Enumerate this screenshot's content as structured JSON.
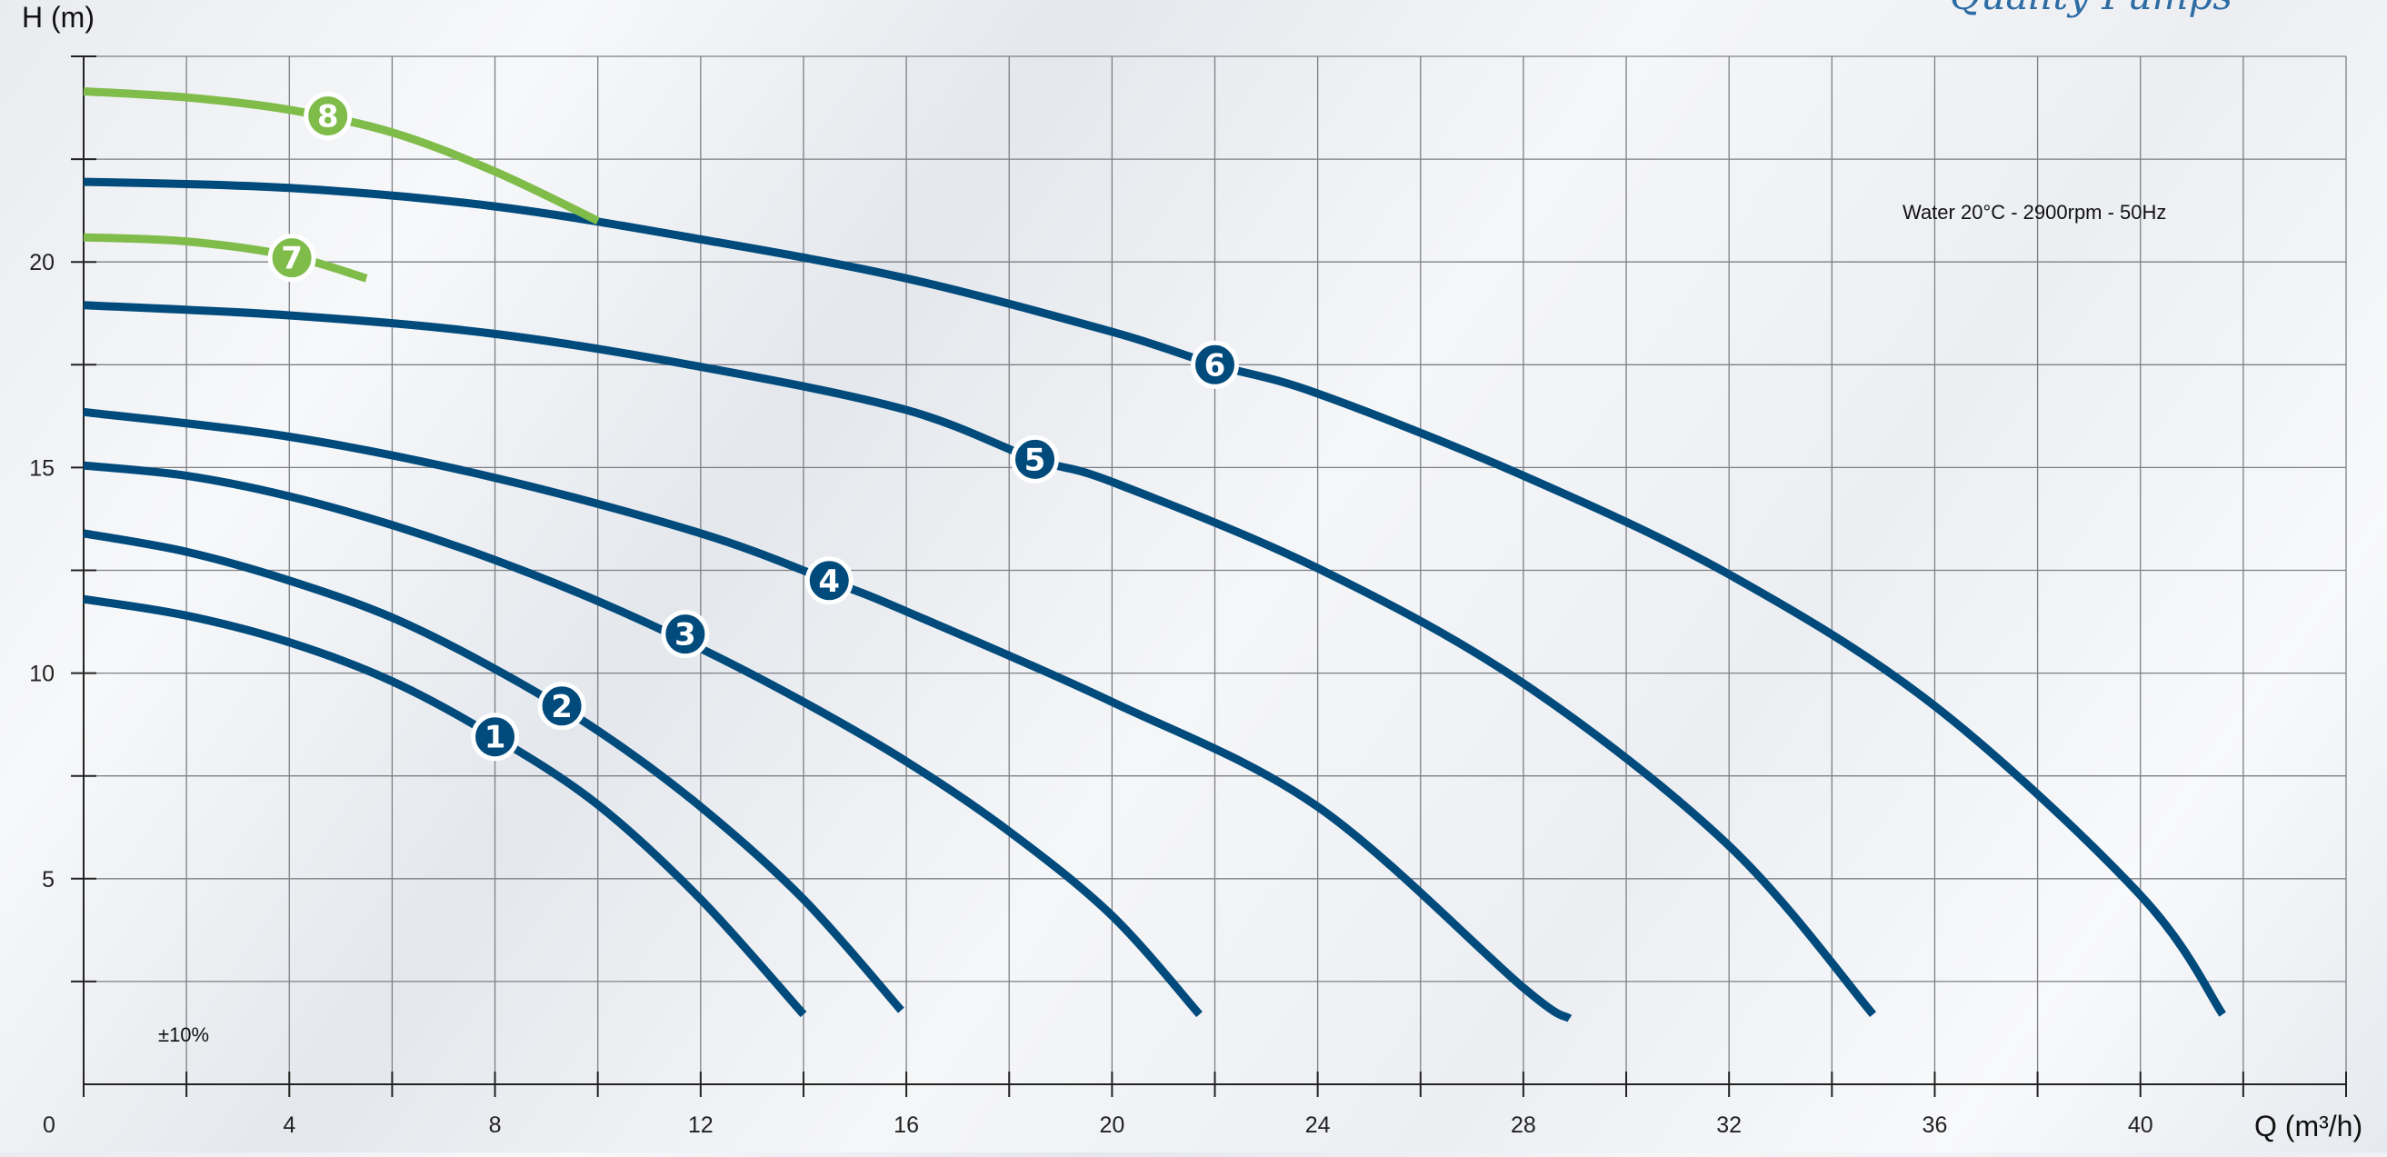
{
  "brand": {
    "logo_text": "Quality Pumps"
  },
  "chart_data": {
    "type": "line",
    "title": "",
    "xlabel": "Q (m³/h)",
    "ylabel": "H (m)",
    "xlim": [
      0,
      44
    ],
    "ylim": [
      0,
      25
    ],
    "x_ticks": [
      0,
      4,
      8,
      12,
      16,
      20,
      24,
      28,
      32,
      36,
      40
    ],
    "y_ticks": [
      5,
      10,
      15,
      20
    ],
    "x_grid_step": 2,
    "y_grid_step": 2.5,
    "grid": true,
    "annotations": {
      "conditions": "Water 20°C - 2900rpm - 50Hz",
      "tolerance": "±10%"
    },
    "colors": {
      "blue": "#004a7c",
      "green": "#80bc4a"
    },
    "series": [
      {
        "label": "1",
        "color": "#004a7c",
        "label_at": [
          8,
          8.45
        ],
        "points": [
          [
            0,
            11.8
          ],
          [
            2,
            11.4
          ],
          [
            4,
            10.75
          ],
          [
            6,
            9.8
          ],
          [
            8,
            8.45
          ],
          [
            10,
            6.8
          ],
          [
            12,
            4.5
          ],
          [
            14,
            1.7
          ]
        ]
      },
      {
        "label": "2",
        "color": "#004a7c",
        "label_at": [
          9.3,
          9.2
        ],
        "points": [
          [
            0,
            13.4
          ],
          [
            2,
            12.95
          ],
          [
            4,
            12.25
          ],
          [
            6,
            11.35
          ],
          [
            8,
            10.1
          ],
          [
            10,
            8.6
          ],
          [
            12,
            6.75
          ],
          [
            14,
            4.5
          ],
          [
            15.9,
            1.8
          ]
        ]
      },
      {
        "label": "3",
        "color": "#004a7c",
        "label_at": [
          11.7,
          10.95
        ],
        "points": [
          [
            0,
            15.05
          ],
          [
            2,
            14.8
          ],
          [
            4,
            14.3
          ],
          [
            6,
            13.6
          ],
          [
            8,
            12.75
          ],
          [
            10,
            11.75
          ],
          [
            12,
            10.6
          ],
          [
            14,
            9.3
          ],
          [
            16,
            7.85
          ],
          [
            18,
            6.15
          ],
          [
            20,
            4.1
          ],
          [
            21.7,
            1.7
          ]
        ]
      },
      {
        "label": "4",
        "color": "#004a7c",
        "label_at": [
          14.5,
          12.25
        ],
        "points": [
          [
            0,
            16.35
          ],
          [
            4,
            15.75
          ],
          [
            8,
            14.75
          ],
          [
            12,
            13.4
          ],
          [
            14.5,
            12.25
          ],
          [
            16,
            11.5
          ],
          [
            20,
            9.3
          ],
          [
            24,
            6.75
          ],
          [
            28,
            2.35
          ],
          [
            28.9,
            1.6
          ]
        ]
      },
      {
        "label": "5",
        "color": "#004a7c",
        "label_at": [
          18.5,
          15.2
        ],
        "points": [
          [
            0,
            18.95
          ],
          [
            4,
            18.7
          ],
          [
            8,
            18.25
          ],
          [
            12,
            17.45
          ],
          [
            16,
            16.4
          ],
          [
            18.5,
            15.2
          ],
          [
            20,
            14.65
          ],
          [
            24,
            12.55
          ],
          [
            28,
            9.75
          ],
          [
            32,
            5.8
          ],
          [
            34.8,
            1.7
          ]
        ]
      },
      {
        "label": "6",
        "color": "#004a7c",
        "label_at": [
          22,
          17.5
        ],
        "points": [
          [
            0,
            21.95
          ],
          [
            4,
            21.8
          ],
          [
            8,
            21.35
          ],
          [
            12,
            20.55
          ],
          [
            16,
            19.6
          ],
          [
            20,
            18.3
          ],
          [
            22,
            17.5
          ],
          [
            24,
            16.8
          ],
          [
            28,
            14.8
          ],
          [
            32,
            12.4
          ],
          [
            36,
            9.2
          ],
          [
            40,
            4.6
          ],
          [
            41.6,
            1.7
          ]
        ]
      },
      {
        "label": "7",
        "color": "#80bc4a",
        "label_at": [
          4.05,
          20.1
        ],
        "points": [
          [
            0,
            20.6
          ],
          [
            2,
            20.5
          ],
          [
            4,
            20.15
          ],
          [
            5.5,
            19.6
          ]
        ]
      },
      {
        "label": "8",
        "color": "#80bc4a",
        "label_at": [
          4.75,
          23.55
        ],
        "points": [
          [
            0,
            24.15
          ],
          [
            2,
            24.0
          ],
          [
            4,
            23.7
          ],
          [
            6,
            23.15
          ],
          [
            8,
            22.2
          ],
          [
            10,
            21.0
          ]
        ]
      }
    ]
  }
}
